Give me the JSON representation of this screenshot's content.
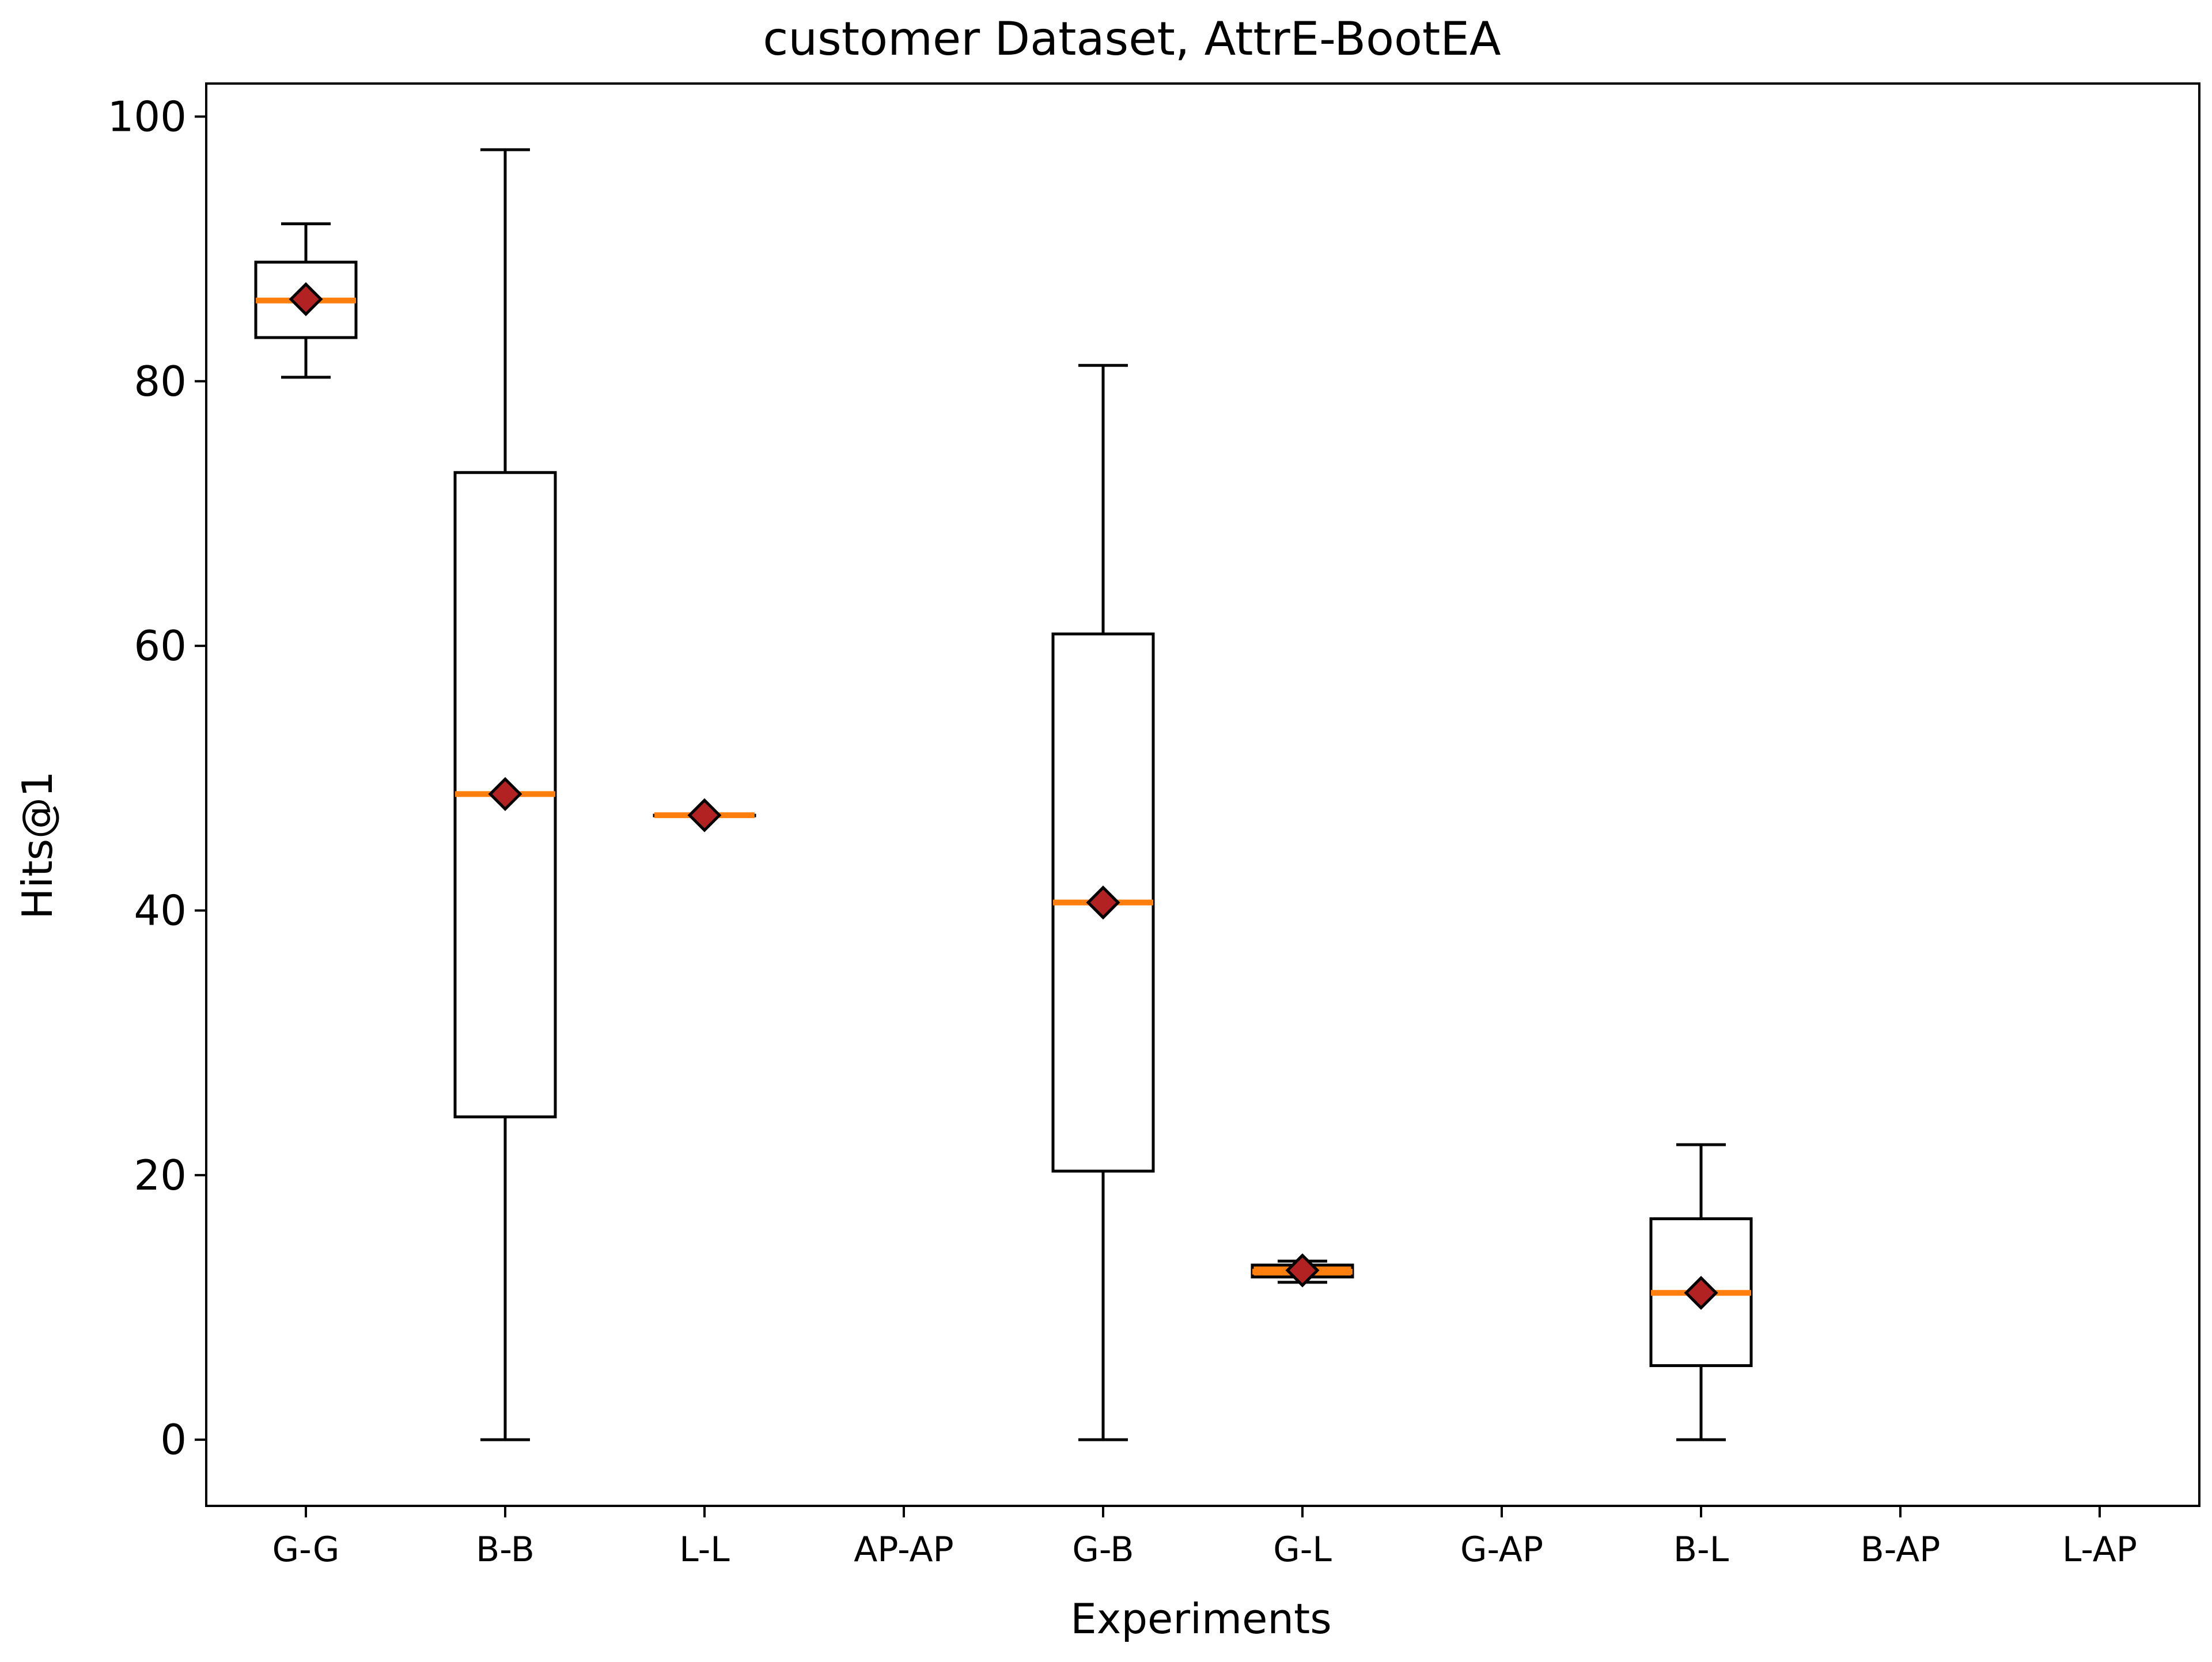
{
  "chart_data": {
    "type": "boxplot",
    "title": "customer Dataset, AttrE-BootEA",
    "xlabel": "Experiments",
    "ylabel": "Hits@1",
    "ylim": [
      -5,
      102.5
    ],
    "yticks": [
      0,
      20,
      40,
      60,
      80,
      100
    ],
    "grid": false,
    "categories": [
      "G-G",
      "B-B",
      "L-L",
      "AP-AP",
      "G-B",
      "G-L",
      "G-AP",
      "B-L",
      "B-AP",
      "L-AP"
    ],
    "boxes": [
      {
        "category": "G-G",
        "whislo": 80.3,
        "q1": 83.3,
        "med": 86.1,
        "q3": 89.0,
        "whishi": 91.9,
        "mean": 86.2,
        "fill": "#ffffff"
      },
      {
        "category": "B-B",
        "whislo": 0.0,
        "q1": 24.4,
        "med": 48.8,
        "q3": 73.1,
        "whishi": 97.5,
        "mean": 48.8,
        "fill": "#ffffff"
      },
      {
        "category": "L-L",
        "whislo": 47.2,
        "q1": 47.2,
        "med": 47.2,
        "q3": 47.2,
        "whishi": 47.2,
        "mean": 47.2,
        "fill": "#ffffff"
      },
      {
        "category": "AP-AP",
        "whislo": null,
        "q1": null,
        "med": null,
        "q3": null,
        "whishi": null,
        "mean": null,
        "fill": "#ffffff"
      },
      {
        "category": "G-B",
        "whislo": 0.0,
        "q1": 20.3,
        "med": 40.6,
        "q3": 60.9,
        "whishi": 81.2,
        "mean": 40.6,
        "fill": "#ffffff"
      },
      {
        "category": "G-L",
        "whislo": 11.9,
        "q1": 12.3,
        "med": 12.7,
        "q3": 13.2,
        "whishi": 13.5,
        "mean": 12.8,
        "fill": "#ff7f0e"
      },
      {
        "category": "G-AP",
        "whislo": null,
        "q1": null,
        "med": null,
        "q3": null,
        "whishi": null,
        "mean": null,
        "fill": "#ffffff"
      },
      {
        "category": "B-L",
        "whislo": 0.0,
        "q1": 5.6,
        "med": 11.1,
        "q3": 16.7,
        "whishi": 22.3,
        "mean": 11.1,
        "fill": "#ffffff"
      },
      {
        "category": "B-AP",
        "whislo": null,
        "q1": null,
        "med": null,
        "q3": null,
        "whishi": null,
        "mean": null,
        "fill": "#ffffff"
      },
      {
        "category": "L-AP",
        "whislo": null,
        "q1": null,
        "med": null,
        "q3": null,
        "whishi": null,
        "mean": null,
        "fill": "#ffffff"
      }
    ],
    "colors": {
      "median": "#ff7f0e",
      "mean_marker": "#b22222",
      "lines": "#000000"
    }
  }
}
